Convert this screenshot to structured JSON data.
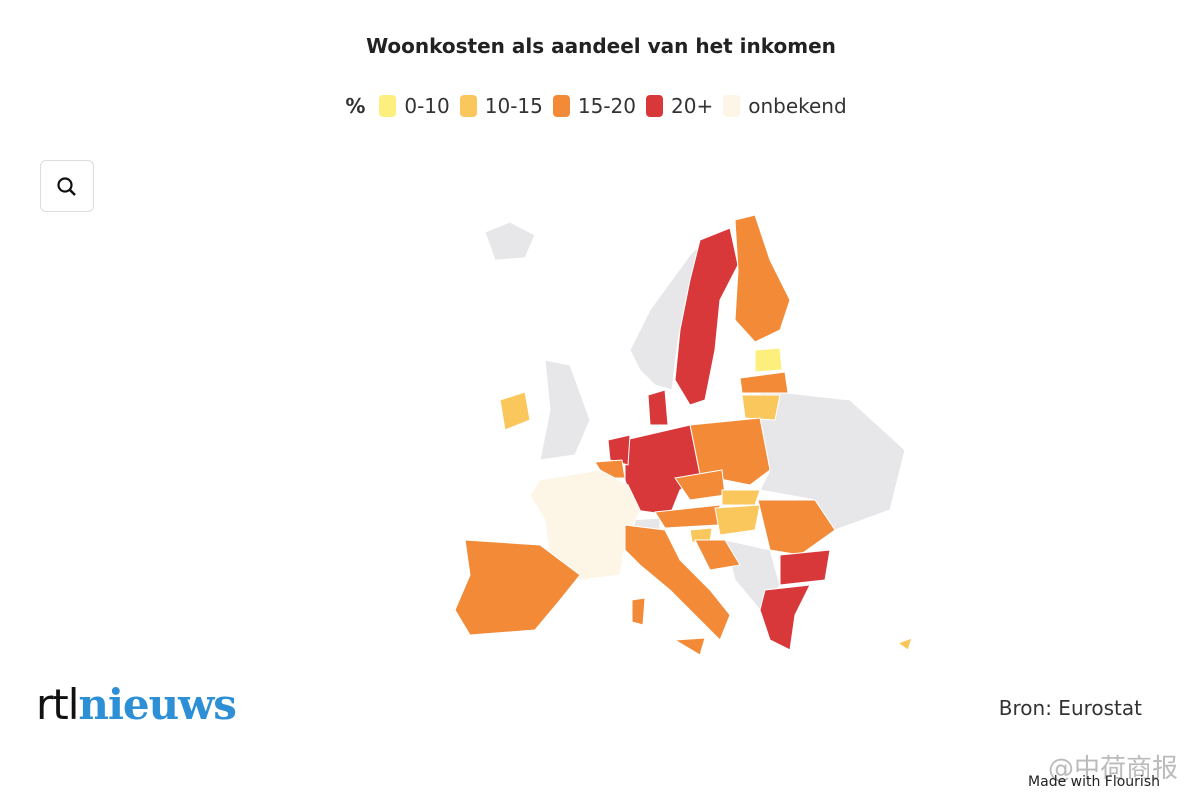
{
  "header": {
    "title": "Woonkosten als aandeel van het inkomen"
  },
  "legend": {
    "unit": "%",
    "items": [
      {
        "label": "0-10",
        "color": "#fcef7e"
      },
      {
        "label": "10-15",
        "color": "#f9c75c"
      },
      {
        "label": "15-20",
        "color": "#f28a38"
      },
      {
        "label": "20+",
        "color": "#d8383a"
      },
      {
        "label": "onbekend",
        "color": "#fdf5e6"
      }
    ]
  },
  "footer": {
    "logo": {
      "part1": "rtl",
      "part2": "nieuws"
    },
    "source": "Bron: Eurostat",
    "credit": "Made with Flourish",
    "watermark": "@中荷商报"
  }
}
